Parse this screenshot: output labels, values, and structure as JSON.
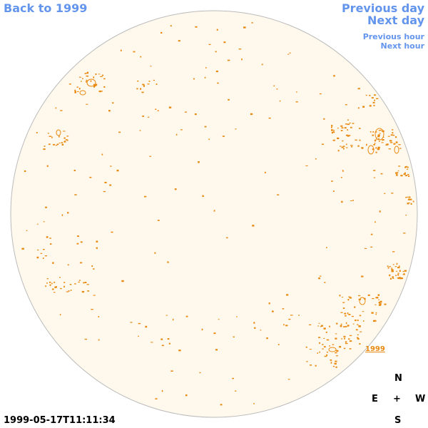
{
  "navigation": {
    "back_label": "Back to 1999",
    "previous_day_label": "Previous day",
    "next_day_label": "Next day",
    "previous_hour_label": "Previous hour",
    "next_hour_label": "Next hour"
  },
  "compass": {
    "north": "N",
    "east": "E",
    "center": "+",
    "west": "W",
    "south": "S"
  },
  "observation": {
    "timestamp": "1999-05-17T11:11:34",
    "year_marker": "1999"
  },
  "colors": {
    "disk_fill": "#fff8ec",
    "disk_edge": "#bbbbbb",
    "feature": "#e88a10",
    "link": "#6495ed"
  }
}
